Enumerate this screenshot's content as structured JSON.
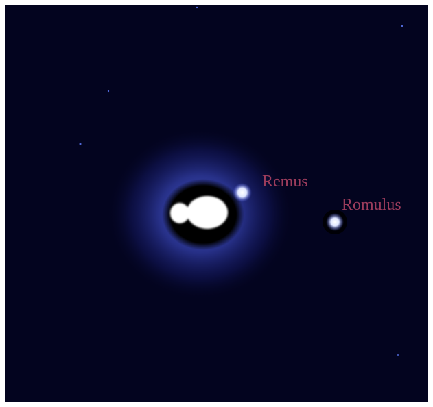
{
  "annotations": [
    {
      "label": "Remus"
    },
    {
      "label": "Romulus"
    }
  ]
}
